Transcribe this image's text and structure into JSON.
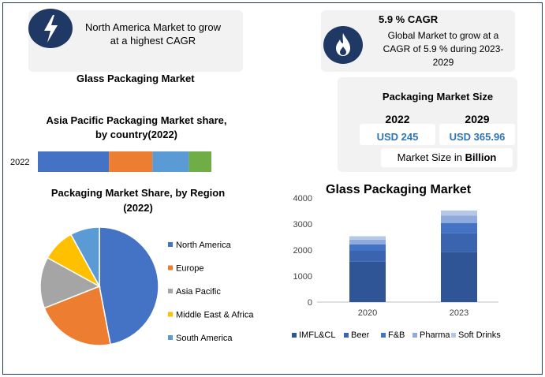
{
  "colors": {
    "navy": "#1f3864",
    "card": "#f2f2f2",
    "accent_blue": "#2e75b6",
    "north_america": "#4472c4",
    "europe": "#ed7d31",
    "asia_pacific": "#a5a5a5",
    "mea": "#ffc000",
    "south_america": "#5b9bd5",
    "segment_green": "#70ad47"
  },
  "icons": {
    "top_left": "lightning-bolt-icon",
    "top_right": "flame-icon"
  },
  "banner_left": {
    "line1": "North America Market to grow",
    "line2": "at a highest CAGR"
  },
  "banner_right": {
    "title": "5.9 % CAGR",
    "line1": "Global Market to grow at a",
    "line2": "CAGR of 5.9 % during 2023-",
    "line3": "2029"
  },
  "glass_title_small": "Glass Packaging Market",
  "size_card": {
    "title": "Packaging Market Size",
    "year1": "2022",
    "year2": "2029",
    "value1": "USD 245",
    "value2": "USD 365.96",
    "unit_prefix": "Market Size in ",
    "unit_bold": "Billion"
  },
  "chart_data": [
    {
      "type": "bar",
      "orientation": "horizontal-stacked",
      "title": "Asia Pacific Packaging Market share, by country(2022)",
      "title_line1": "Asia Pacific Packaging Market share,",
      "title_line2": "by country(2022)",
      "categories": [
        "2022"
      ],
      "series": [
        {
          "values": [
            41
          ],
          "color": "#4472c4"
        },
        {
          "values": [
            25
          ],
          "color": "#ed7d31"
        },
        {
          "values": [
            21
          ],
          "color": "#5b9bd5"
        },
        {
          "values": [
            13
          ],
          "color": "#70ad47"
        }
      ]
    },
    {
      "type": "pie",
      "title": "Packaging Market Share, by Region (2022)",
      "title_line1": "Packaging Market Share, by Region",
      "title_line2": "(2022)",
      "legend_position": "right",
      "slices": [
        {
          "label": "North America",
          "value": 47,
          "color": "#4472c4"
        },
        {
          "label": "Europe",
          "value": 22,
          "color": "#ed7d31"
        },
        {
          "label": "Asia Pacific",
          "value": 14,
          "color": "#a5a5a5"
        },
        {
          "label": "Middle East & Africa",
          "value": 9,
          "color": "#ffc000"
        },
        {
          "label": "South America",
          "value": 8,
          "color": "#5b9bd5"
        }
      ]
    },
    {
      "type": "bar",
      "orientation": "vertical-stacked",
      "title": "Glass Packaging Market",
      "categories": [
        "2020",
        "2023"
      ],
      "ylim": [
        0,
        4000
      ],
      "yticks": [
        "0",
        "1000",
        "2000",
        "3000",
        "4000"
      ],
      "legend_position": "bottom",
      "series": [
        {
          "name": "IMFL&CL",
          "values": [
            1550,
            1920
          ],
          "color": "#2f5597"
        },
        {
          "name": "Beer",
          "values": [
            420,
            720
          ],
          "color": "#3a63b0"
        },
        {
          "name": "F&B",
          "values": [
            250,
            400
          ],
          "color": "#4472c4"
        },
        {
          "name": "Pharma",
          "values": [
            180,
            280
          ],
          "color": "#8faadc"
        },
        {
          "name": "Soft Drinks",
          "values": [
            130,
            200
          ],
          "color": "#b4c7e7"
        }
      ]
    }
  ]
}
